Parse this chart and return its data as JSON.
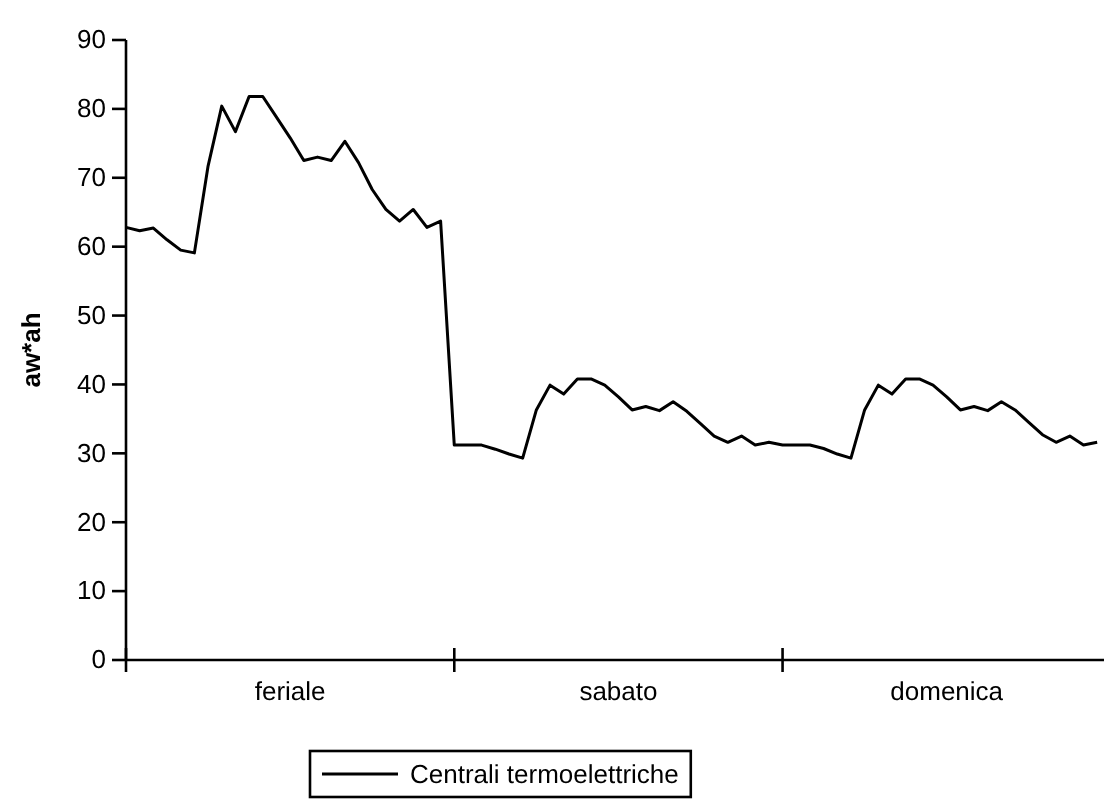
{
  "chart_data": {
    "type": "line",
    "ylabel": "aw*ah",
    "categories": [
      null,
      null,
      null,
      null,
      null,
      null,
      null,
      null,
      null,
      null,
      null,
      null,
      "feriale",
      null,
      null,
      null,
      null,
      null,
      null,
      null,
      null,
      null,
      null,
      null,
      null,
      null,
      null,
      null,
      null,
      null,
      null,
      null,
      null,
      null,
      null,
      null,
      "sabato",
      null,
      null,
      null,
      null,
      null,
      null,
      null,
      null,
      null,
      null,
      null,
      null,
      null,
      null,
      null,
      null,
      null,
      null,
      null,
      null,
      null,
      null,
      null,
      "domenica",
      null,
      null,
      null,
      null,
      null,
      null,
      null,
      null,
      null,
      null,
      null
    ],
    "ylim": [
      0,
      90
    ],
    "yticks": [
      0,
      10,
      20,
      30,
      40,
      50,
      60,
      70,
      80,
      90
    ],
    "grid": false,
    "legend": "bottom",
    "marker": "none",
    "line_style": "solid",
    "series": [
      {
        "name": "Centrali termoelettriche",
        "color": "#000000",
        "values": [
          62.8,
          62.3,
          62.7,
          61,
          59.5,
          59.1,
          71.7,
          80.4,
          76.7,
          81.8,
          81.8,
          78.8,
          75.8,
          72.5,
          73,
          72.5,
          75.3,
          72.2,
          68.3,
          65.4,
          63.7,
          65.4,
          62.8,
          63.7,
          31.2,
          31.2,
          31.2,
          30.6,
          29.9,
          29.3,
          36.3,
          39.9,
          38.6,
          40.8,
          40.8,
          39.9,
          38.2,
          36.3,
          36.8,
          36.2,
          37.5,
          36.1,
          34.3,
          32.5,
          31.6,
          32.5,
          31.2,
          31.6,
          31.2,
          31.2,
          31.2,
          30.7,
          29.9,
          29.3,
          36.3,
          39.9,
          38.6,
          40.8,
          40.8,
          39.9,
          38.2,
          36.3,
          36.8,
          36.2,
          37.5,
          36.3,
          34.5,
          32.7,
          31.6,
          32.5,
          31.2,
          31.6
        ]
      }
    ]
  }
}
